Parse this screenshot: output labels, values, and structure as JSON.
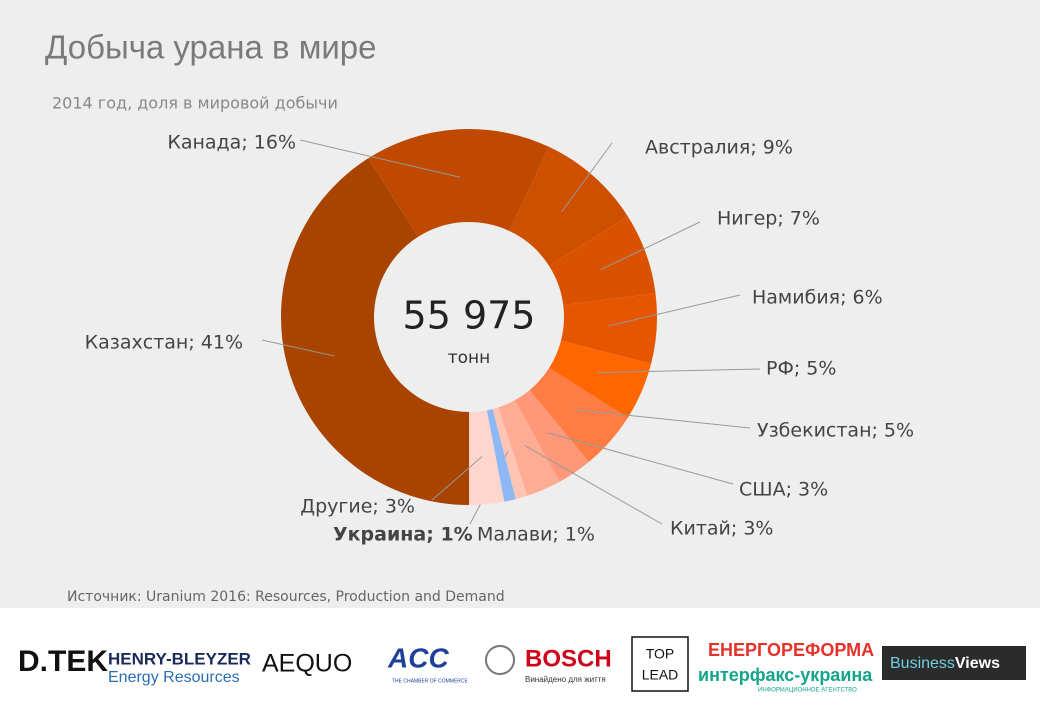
{
  "chart_data": {
    "type": "donut",
    "title": "Добыча урана в мире",
    "subtitle": "2014 год, доля в мировой добычи",
    "center_label": "55 975",
    "center_unit": "тонн",
    "value_labels": [
      "Казахстан; 41%",
      "Канада; 16%",
      "Австралия; 9%",
      "Нигер; 7%",
      "Намибия; 6%",
      "РФ; 5%",
      "Узбекистан; 5%",
      "США; 3%",
      "Китай; 3%",
      "Малави; 1%",
      "Украина; 1%",
      "Другие; 3%"
    ],
    "values": [
      41,
      16,
      9,
      7,
      6,
      5,
      5,
      3,
      3,
      1,
      1,
      3
    ],
    "colors": [
      "#a84300",
      "#c04900",
      "#cf4f00",
      "#da5200",
      "#e65600",
      "#ff6600",
      "#ff7c45",
      "#ff9878",
      "#ffac94",
      "#ffc4b4",
      "#8db8f5",
      "#ffd6ce"
    ],
    "highlight_index": 10,
    "source": "Источник: Uranium 2016: Resources, Production and Demand"
  },
  "sponsors": {
    "dtek": "D.TEK",
    "hb1": "HENRY-BLEYZER",
    "hb2": "Energy Resources",
    "aequo": "AEQUO",
    "acc": "ACC",
    "acc2": "THE CHAMBER OF COMMERCE",
    "bosch": "BOSCH",
    "bosch2": "Винайдено для життя",
    "top": "TOP",
    "lead": "LEAD",
    "er": "ЕНЕРГОРЕФОРМА",
    "ifx": "интерфакс-украина",
    "ifx2": "ИНФОРМАЦИОННОЕ АГЕНТСТВО",
    "bv1": "Business",
    "bv2": "Views"
  }
}
